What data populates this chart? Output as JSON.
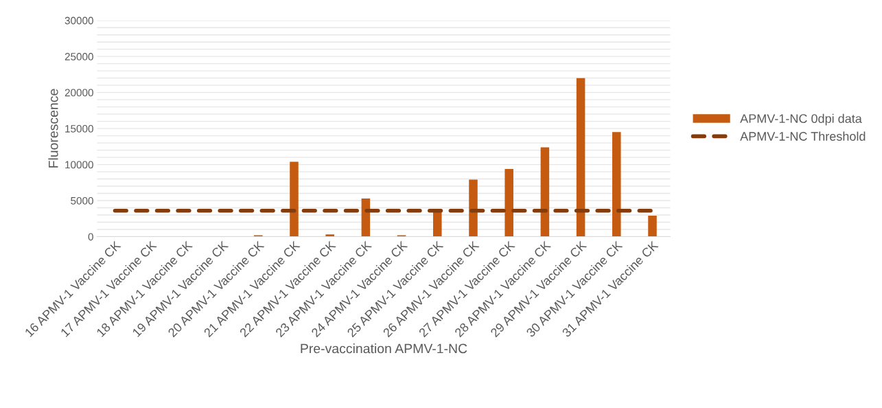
{
  "chart_data": {
    "type": "bar",
    "xlabel": "Pre-vaccination APMV-1-NC",
    "ylabel": "Fluorescence",
    "categories": [
      "16 APMV-1 Vaccine CK",
      "17 APMV-1 Vaccine CK",
      "18 APMV-1 Vaccine CK",
      "19 APMV-1 Vaccine CK",
      "20 APMV-1 Vaccine CK",
      "21 APMV-1 Vaccine CK",
      "22 APMV-1 Vaccine CK",
      "23 APMV-1 Vaccine CK",
      "24 APMV-1 Vaccine CK",
      "25 APMV-1 Vaccine CK",
      "26 APMV-1 Vaccine CK",
      "27 APMV-1 Vaccine CK",
      "28 APMV-1 Vaccine CK",
      "29 APMV-1 Vaccine CK",
      "30 APMV-1 Vaccine CK",
      "31 APMV-1 Vaccine CK"
    ],
    "series": [
      {
        "name": "APMV-1-NC 0dpi data",
        "color": "#c55a11",
        "values": [
          0,
          0,
          0,
          0,
          200,
          10400,
          300,
          5300,
          200,
          3600,
          7900,
          9400,
          12400,
          22000,
          14500,
          2900
        ]
      },
      {
        "name": "APMV-1-NC Threshold",
        "type": "line",
        "line_style": "dashed",
        "marker": "none",
        "color": "#843c0c",
        "values": [
          3600,
          3600,
          3600,
          3600,
          3600,
          3600,
          3600,
          3600,
          3600,
          3600,
          3600,
          3600,
          3600,
          3600,
          3600,
          3600
        ]
      }
    ],
    "ylim": [
      0,
      30000
    ],
    "yticks": [
      0,
      {
        "value": 1000,
        "label": null
      },
      {
        "value": 2000,
        "label": null
      },
      {
        "value": 3000,
        "label": null
      },
      {
        "value": 4000,
        "label": null
      },
      5000,
      {
        "value": 6000,
        "label": null
      },
      {
        "value": 7000,
        "label": null
      },
      {
        "value": 8000,
        "label": null
      },
      {
        "value": 9000,
        "label": null
      },
      10000,
      {
        "value": 11000,
        "label": null
      },
      {
        "value": 12000,
        "label": null
      },
      {
        "value": 13000,
        "label": null
      },
      {
        "value": 14000,
        "label": null
      },
      15000,
      {
        "value": 16000,
        "label": null
      },
      {
        "value": 17000,
        "label": null
      },
      {
        "value": 18000,
        "label": null
      },
      {
        "value": 19000,
        "label": null
      },
      20000,
      {
        "value": 21000,
        "label": null
      },
      {
        "value": 22000,
        "label": null
      },
      {
        "value": 23000,
        "label": null
      },
      {
        "value": 24000,
        "label": null
      },
      25000,
      {
        "value": 26000,
        "label": null
      },
      {
        "value": 27000,
        "label": null
      },
      {
        "value": 28000,
        "label": null
      },
      {
        "value": 29000,
        "label": null
      },
      30000
    ],
    "grid": "y",
    "legend": "right"
  }
}
